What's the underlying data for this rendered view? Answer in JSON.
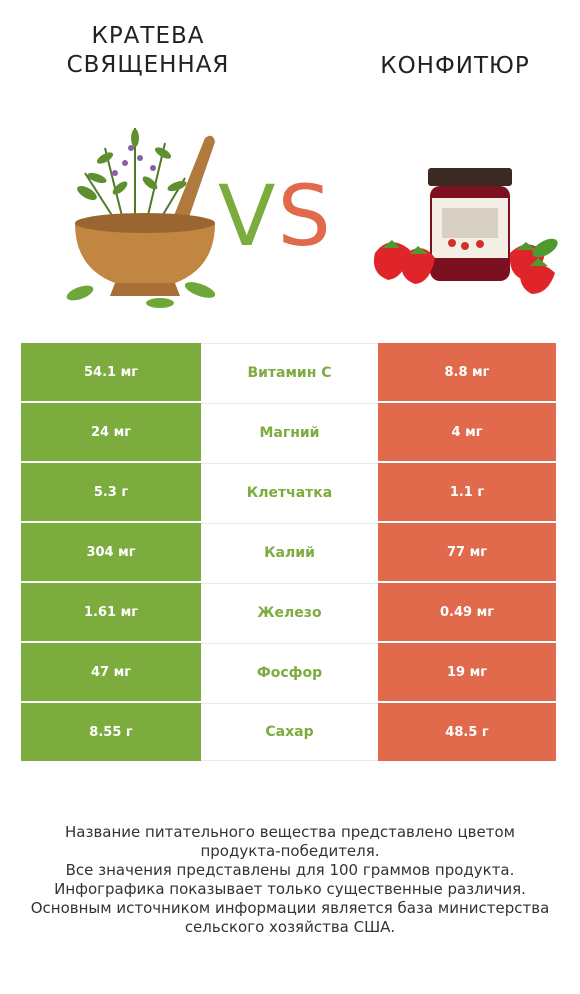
{
  "colors": {
    "left": "#7cab3e",
    "right": "#e16a4d"
  },
  "left": {
    "title_lines": [
      "Кратева",
      "священная"
    ],
    "image_icon": "herbs-mortar-illustration"
  },
  "right": {
    "title": "Конфитюр",
    "image_icon": "strawberry-jam-jar-illustration"
  },
  "vs": {
    "v": "V",
    "s": "S"
  },
  "rows": [
    {
      "name": "Витамин C",
      "left": "54.1 мг",
      "right": "8.8 мг",
      "winner": "left"
    },
    {
      "name": "Магний",
      "left": "24 мг",
      "right": "4 мг",
      "winner": "left"
    },
    {
      "name": "Клетчатка",
      "left": "5.3 г",
      "right": "1.1 г",
      "winner": "left"
    },
    {
      "name": "Калий",
      "left": "304 мг",
      "right": "77 мг",
      "winner": "left"
    },
    {
      "name": "Железо",
      "left": "1.61 мг",
      "right": "0.49 мг",
      "winner": "left"
    },
    {
      "name": "Фосфор",
      "left": "47 мг",
      "right": "19 мг",
      "winner": "left"
    },
    {
      "name": "Сахар",
      "left": "8.55 г",
      "right": "48.5 г",
      "winner": "left"
    }
  ],
  "footer": [
    "Название питательного вещества представлено цветом",
    "продукта-победителя.",
    "Все значения представлены для 100 граммов продукта.",
    "Инфографика показывает только существенные различия.",
    "Основным источником информации является база министерства",
    "сельского хозяйства США."
  ]
}
